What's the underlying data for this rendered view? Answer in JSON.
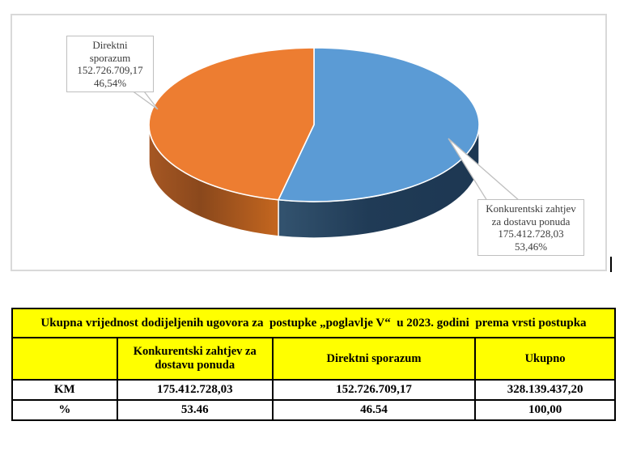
{
  "chart_data": {
    "type": "pie",
    "style": "3d",
    "title": "",
    "legend": "none",
    "label_style": "callout boxes with leader lines",
    "start_angle_deg": 0,
    "direction": "clockwise",
    "total_value_text": "328.139.437,20",
    "slices": [
      {
        "label": "Konkurentski zahtjev za dostavu ponuda",
        "value": 175412728.03,
        "value_text": "175.412.728,03",
        "pct": 53.46,
        "pct_text": "53,46%",
        "color": "#5b9bd5",
        "side_gradient": [
          "#33536f",
          "#203b56",
          "#1d3752"
        ]
      },
      {
        "label": "Direktni sporazum",
        "value": 152726709.17,
        "value_text": "152.726.709,17",
        "pct": 46.54,
        "pct_text": "46,54%",
        "color": "#ed7d31",
        "side_gradient": [
          "#a65723",
          "#8a481c",
          "#c4661f"
        ]
      }
    ]
  },
  "table": {
    "title": "Ukupna vrijednost dodijeljenih ugovora za  postupke „poglavlje V“  u 2023. godini  prema vrsti postupka",
    "header_bg": "#ffff00",
    "columns": [
      "",
      "Konkurentski zahtjev za dostavu ponuda",
      "Direktni sporazum",
      "Ukupno"
    ],
    "rows": [
      {
        "label": "KM",
        "values": [
          "175.412.728,03",
          "152.726.709,17",
          "328.139.437,20"
        ]
      },
      {
        "label": "%",
        "values": [
          "53.46",
          "46.54",
          "100,00"
        ]
      }
    ]
  }
}
